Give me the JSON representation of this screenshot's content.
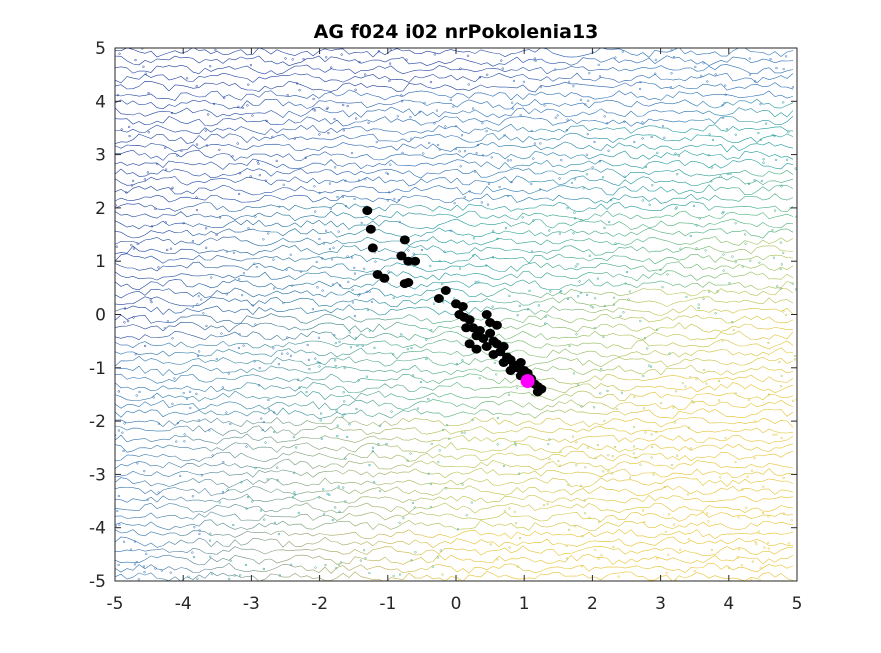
{
  "chart_data": {
    "type": "scatter",
    "title": "AG f024 i02 nrPokolenia13",
    "xlabel": "",
    "ylabel": "",
    "xlim": [
      -5,
      5
    ],
    "ylim": [
      -5,
      5
    ],
    "xticks": [
      -5,
      -4,
      -3,
      -2,
      -1,
      0,
      1,
      2,
      3,
      4,
      5
    ],
    "yticks": [
      -5,
      -4,
      -3,
      -2,
      -1,
      0,
      1,
      2,
      3,
      4,
      5
    ],
    "background": "contour",
    "contour_colors": [
      "#1f3f9f",
      "#2a6fb5",
      "#1f9a9a",
      "#4fb07a",
      "#b9c24a",
      "#e6c230"
    ],
    "series": [
      {
        "marker_color": "#000000",
        "points": [
          [
            -1.3,
            1.95
          ],
          [
            -1.25,
            1.6
          ],
          [
            -1.22,
            1.25
          ],
          [
            -0.75,
            1.4
          ],
          [
            -0.8,
            1.1
          ],
          [
            -0.7,
            1.0
          ],
          [
            -0.6,
            1.0
          ],
          [
            -1.15,
            0.75
          ],
          [
            -1.05,
            0.68
          ],
          [
            -0.7,
            0.6
          ],
          [
            -0.75,
            0.58
          ],
          [
            -0.15,
            0.45
          ],
          [
            -0.25,
            0.3
          ],
          [
            0.0,
            0.2
          ],
          [
            0.1,
            0.15
          ],
          [
            0.05,
            0.0
          ],
          [
            0.12,
            -0.05
          ],
          [
            0.2,
            -0.1
          ],
          [
            0.15,
            -0.25
          ],
          [
            0.25,
            -0.25
          ],
          [
            0.35,
            -0.3
          ],
          [
            0.3,
            -0.4
          ],
          [
            0.4,
            -0.45
          ],
          [
            0.5,
            -0.35
          ],
          [
            0.55,
            -0.5
          ],
          [
            0.45,
            -0.6
          ],
          [
            0.6,
            -0.55
          ],
          [
            0.65,
            -0.7
          ],
          [
            0.7,
            -0.6
          ],
          [
            0.55,
            -0.75
          ],
          [
            0.75,
            -0.8
          ],
          [
            0.8,
            -0.85
          ],
          [
            0.7,
            -0.9
          ],
          [
            0.85,
            -0.95
          ],
          [
            0.9,
            -1.0
          ],
          [
            0.95,
            -0.9
          ],
          [
            1.0,
            -1.05
          ],
          [
            1.05,
            -1.1
          ],
          [
            0.95,
            -1.15
          ],
          [
            1.1,
            -1.2
          ],
          [
            1.15,
            -1.3
          ],
          [
            1.2,
            -1.35
          ],
          [
            1.25,
            -1.4
          ],
          [
            1.2,
            -1.45
          ],
          [
            0.45,
            0.0
          ],
          [
            0.3,
            -0.65
          ],
          [
            0.6,
            -0.2
          ],
          [
            0.2,
            -0.55
          ],
          [
            0.5,
            -0.15
          ],
          [
            0.8,
            -1.05
          ]
        ]
      },
      {
        "marker_color": "#ff00ff",
        "points": [
          [
            1.05,
            -1.25
          ]
        ]
      }
    ]
  }
}
